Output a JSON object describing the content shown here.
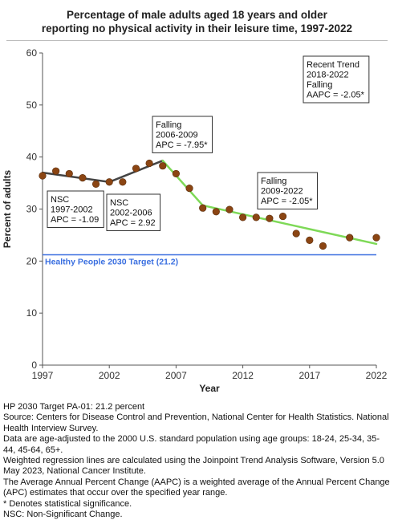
{
  "title": [
    "Percentage of male adults aged 18 years and older",
    "reporting no physical activity in their leisure time, 1997-2022"
  ],
  "footnotes": [
    "HP 2030 Target PA-01: 21.2 percent",
    "Source: Centers for Disease Control and Prevention, National Center for Health Statistics. National Health Interview Survey.",
    "Data are age-adjusted to the 2000 U.S. standard population using age groups: 18-24, 25-34, 35-44, 45-64, 65+.",
    "Weighted regression lines are calculated using the Joinpoint Trend Analysis Software, Version 5.0 May 2023, National Cancer Institute.",
    "The Average Annual Percent Change (AAPC) is a weighted average of the Annual Percent Change (APC) estimates that occur over the specified year range.",
    "* Denotes statistical significance.",
    "NSC: Non-Significant Change."
  ],
  "chart_data": {
    "type": "scatter",
    "xlabel": "Year",
    "ylabel": "Percent of adults",
    "xlim": [
      1997,
      2022
    ],
    "ylim": [
      0,
      60
    ],
    "xticks": [
      1997,
      2002,
      2007,
      2012,
      2017,
      2022
    ],
    "yticks": [
      0,
      10,
      20,
      30,
      40,
      50,
      60
    ],
    "grid": false,
    "points": {
      "x": [
        1997,
        1998,
        1999,
        2000,
        2001,
        2002,
        2003,
        2004,
        2005,
        2006,
        2007,
        2008,
        2009,
        2010,
        2011,
        2012,
        2013,
        2014,
        2015,
        2016,
        2017,
        2018,
        2020,
        2022
      ],
      "y": [
        36.4,
        37.3,
        36.8,
        36.0,
        34.8,
        35.2,
        35.2,
        37.8,
        38.8,
        38.3,
        36.8,
        34.0,
        30.2,
        29.5,
        29.9,
        28.4,
        28.4,
        28.2,
        28.6,
        25.3,
        24.0,
        22.9,
        24.5,
        24.5
      ],
      "color": "#8b4513"
    },
    "segments": [
      {
        "x": [
          1997,
          2002
        ],
        "y": [
          37.0,
          35.2
        ],
        "color": "#444444",
        "label": [
          "NSC",
          "1997-2002",
          "APC = -1.09"
        ]
      },
      {
        "x": [
          2002,
          2006
        ],
        "y": [
          35.2,
          39.3
        ],
        "color": "#444444",
        "label": [
          "NSC",
          "2002-2006",
          "APC =  2.92"
        ]
      },
      {
        "x": [
          2006,
          2009
        ],
        "y": [
          39.3,
          30.7
        ],
        "color": "#7ed957",
        "label": [
          "Falling",
          "2006-2009",
          "APC = -7.95*"
        ]
      },
      {
        "x": [
          2009,
          2022
        ],
        "y": [
          30.7,
          23.3
        ],
        "color": "#7ed957",
        "label": [
          "Falling",
          "2009-2022",
          "APC = -2.05*"
        ]
      }
    ],
    "trend_box": [
      "Recent Trend",
      "2018-2022",
      "Falling",
      "AAPC = -2.05*"
    ],
    "target": {
      "value": 21.2,
      "label": "Healthy People 2030 Target (21.2)",
      "color": "#3a6fe0"
    }
  }
}
